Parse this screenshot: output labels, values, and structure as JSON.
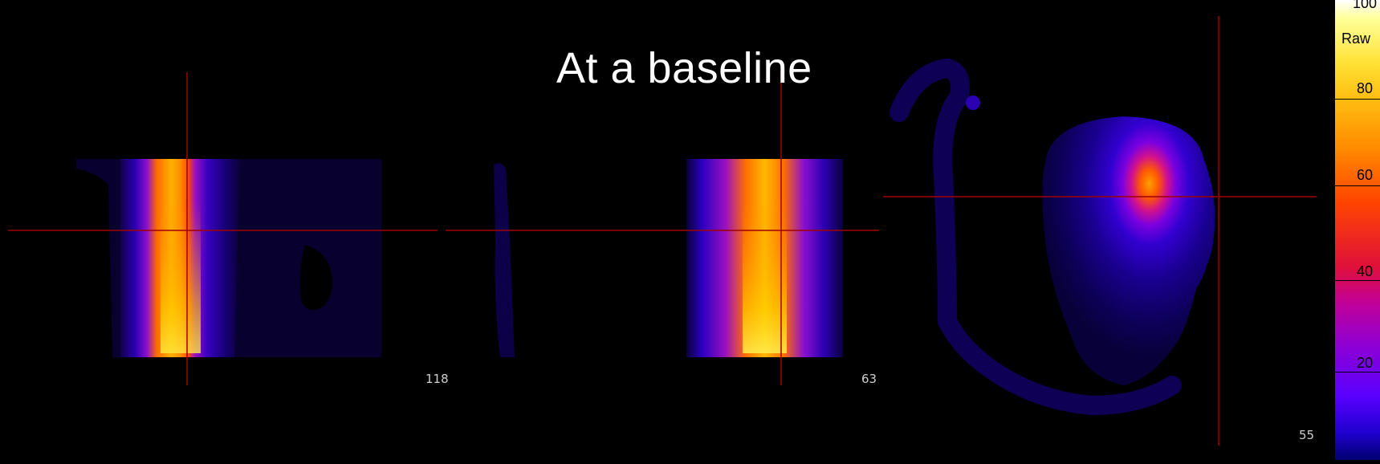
{
  "title": "At a baseline",
  "viewports": [
    {
      "name": "coronal",
      "slice": "118"
    },
    {
      "name": "sagittal",
      "slice": "63"
    },
    {
      "name": "axial",
      "slice": "55"
    }
  ],
  "colorbar": {
    "unit": "Raw",
    "top_label": "100",
    "ticks": [
      "80",
      "60",
      "40",
      "20"
    ]
  },
  "colors": {
    "background": "#000000",
    "crosshair": "#a00000",
    "text": "#ffffff"
  }
}
